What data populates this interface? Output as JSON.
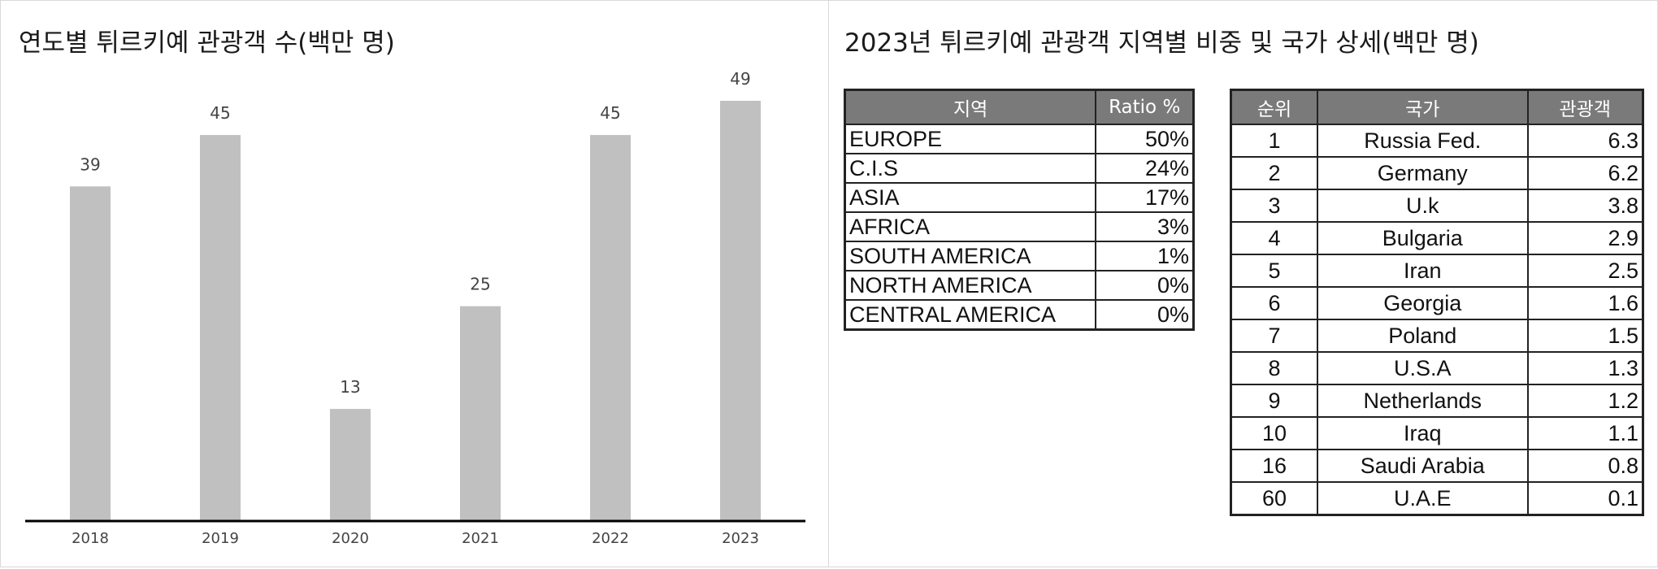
{
  "left_panel": {
    "title": "연도별 튀르키예 관광객 수(백만 명)"
  },
  "chart_data": {
    "type": "bar",
    "title": "연도별 튀르키예 관광객 수(백만 명)",
    "categories": [
      "2018",
      "2019",
      "2020",
      "2021",
      "2022",
      "2023"
    ],
    "values": [
      39,
      45,
      13,
      25,
      45,
      49
    ],
    "xlabel": "",
    "ylabel": "",
    "ylim": [
      0,
      49
    ],
    "grid": false,
    "legend": "none",
    "bar_color": "#c0c0c0",
    "axis_color": "#000000"
  },
  "right_panel": {
    "title": "2023년 튀르키예 관광객 지역별 비중 및 국가 상세(백만 명)",
    "region_table": {
      "headers": [
        "지역",
        "Ratio %"
      ],
      "rows": [
        {
          "name": "EUROPE",
          "ratio": "50%"
        },
        {
          "name": "C.I.S",
          "ratio": "24%"
        },
        {
          "name": "ASIA",
          "ratio": "17%"
        },
        {
          "name": "AFRICA",
          "ratio": "3%"
        },
        {
          "name": "SOUTH AMERICA",
          "ratio": "1%"
        },
        {
          "name": "NORTH AMERICA",
          "ratio": "0%"
        },
        {
          "name": "CENTRAL AMERICA",
          "ratio": "0%"
        }
      ]
    },
    "country_table": {
      "headers": [
        "순위",
        "국가",
        "관광객"
      ],
      "rows": [
        {
          "rank": "1",
          "country": "Russia Fed.",
          "visitors": "6.3"
        },
        {
          "rank": "2",
          "country": "Germany",
          "visitors": "6.2"
        },
        {
          "rank": "3",
          "country": "U.k",
          "visitors": "3.8"
        },
        {
          "rank": "4",
          "country": "Bulgaria",
          "visitors": "2.9"
        },
        {
          "rank": "5",
          "country": "Iran",
          "visitors": "2.5"
        },
        {
          "rank": "6",
          "country": "Georgia",
          "visitors": "1.6"
        },
        {
          "rank": "7",
          "country": "Poland",
          "visitors": "1.5"
        },
        {
          "rank": "8",
          "country": "U.S.A",
          "visitors": "1.3"
        },
        {
          "rank": "9",
          "country": "Netherlands",
          "visitors": "1.2"
        },
        {
          "rank": "10",
          "country": "Iraq",
          "visitors": "1.1"
        },
        {
          "rank": "16",
          "country": "Saudi Arabia",
          "visitors": "0.8"
        },
        {
          "rank": "60",
          "country": "U.A.E",
          "visitors": "0.1"
        }
      ]
    }
  }
}
